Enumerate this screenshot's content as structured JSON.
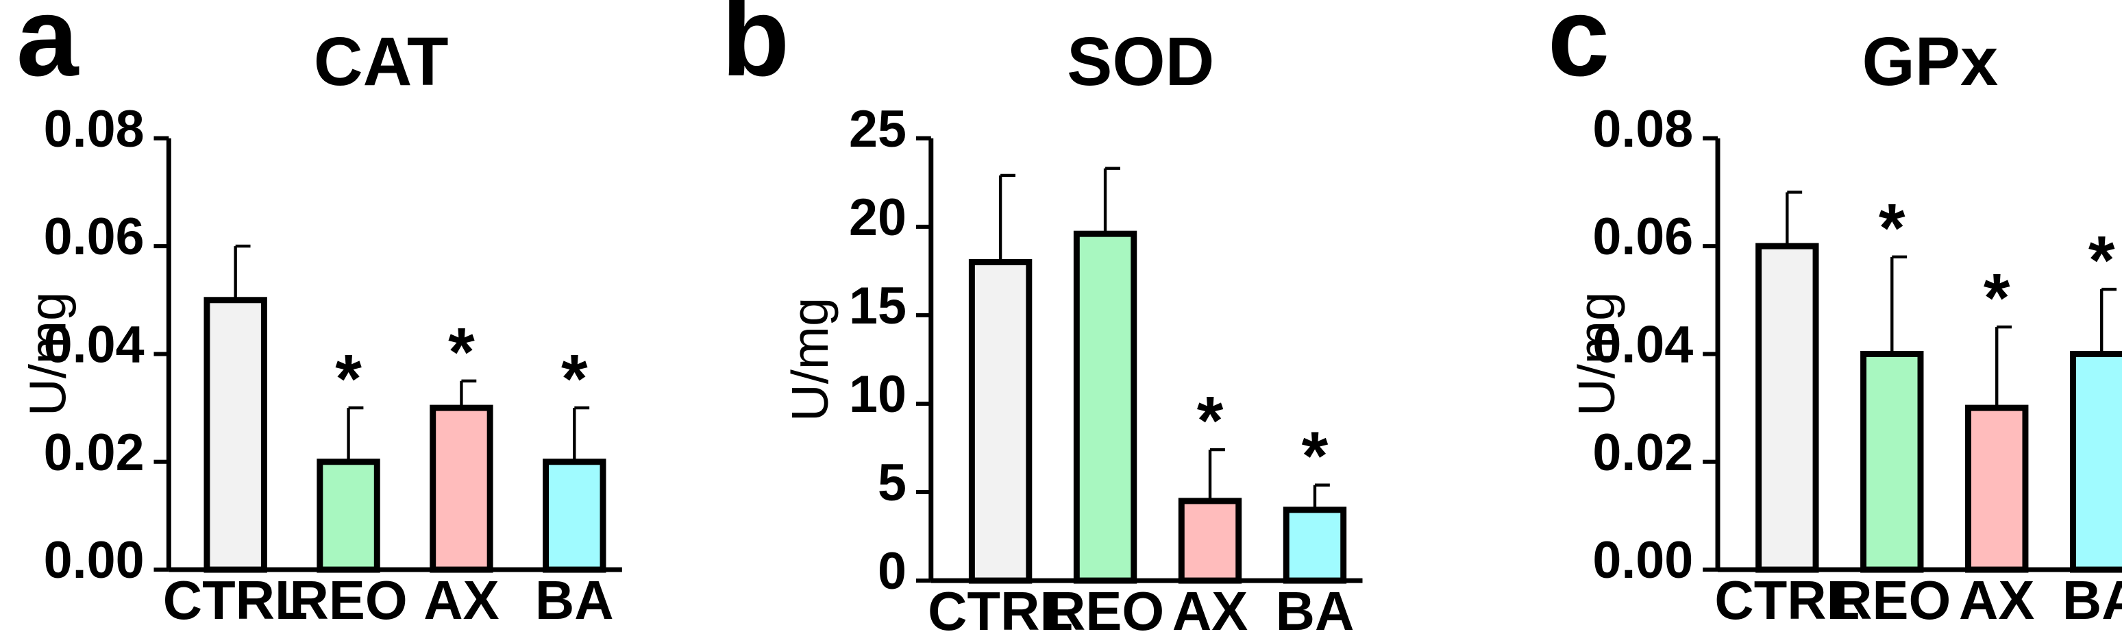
{
  "chart_data": [
    {
      "type": "bar",
      "panel": "a",
      "title": "CAT",
      "ylabel": "U/mg",
      "xlabel": "",
      "ylim": [
        0,
        0.08
      ],
      "yticks": [
        "0.00",
        "0.02",
        "0.04",
        "0.06",
        "0.08"
      ],
      "categories": [
        "CTRL",
        "REO",
        "AX",
        "BA"
      ],
      "values": [
        0.05,
        0.02,
        0.03,
        0.02
      ],
      "errors": [
        0.01,
        0.01,
        0.005,
        0.01
      ],
      "significance": [
        "",
        "*",
        "*",
        "*"
      ],
      "colors": [
        "#f2f2f2",
        "#a8f7c0",
        "#ffbcbc",
        "#a0fbff"
      ],
      "grid": false,
      "legend": "none"
    },
    {
      "type": "bar",
      "panel": "b",
      "title": "SOD",
      "ylabel": "U/mg",
      "xlabel": "",
      "ylim": [
        0,
        25
      ],
      "yticks": [
        "0",
        "5",
        "10",
        "15",
        "20",
        "25"
      ],
      "categories": [
        "CTRL",
        "REO",
        "AX",
        "BA"
      ],
      "values": [
        18,
        19.6,
        4.5,
        4.0
      ],
      "errors": [
        4.9,
        3.7,
        2.9,
        1.4
      ],
      "significance": [
        "",
        "",
        "*",
        "*"
      ],
      "colors": [
        "#f2f2f2",
        "#a8f7c0",
        "#ffbcbc",
        "#a0fbff"
      ],
      "grid": false,
      "legend": "none"
    },
    {
      "type": "bar",
      "panel": "c",
      "title": "GPx",
      "ylabel": "U/mg",
      "xlabel": "",
      "ylim": [
        0,
        0.08
      ],
      "yticks": [
        "0.00",
        "0.02",
        "0.04",
        "0.06",
        "0.08"
      ],
      "categories": [
        "CTRL",
        "REO",
        "AX",
        "BA"
      ],
      "values": [
        0.06,
        0.04,
        0.03,
        0.04
      ],
      "errors": [
        0.01,
        0.018,
        0.015,
        0.012
      ],
      "significance": [
        "",
        "*",
        "*",
        "*"
      ],
      "colors": [
        "#f2f2f2",
        "#a8f7c0",
        "#ffbcbc",
        "#a0fbff"
      ],
      "grid": false,
      "legend": "none"
    }
  ]
}
